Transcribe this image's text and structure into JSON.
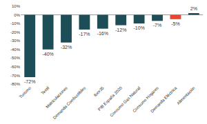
{
  "chart_data": {
    "type": "bar",
    "categories": [
      "Turismo",
      "Textil",
      "Matriculaciones",
      "Demanda Combustibles",
      "Ibex35",
      "PIB España 2020",
      "Consumo Gas Natural",
      "Consumo Hogares",
      "Demanda Eléctrica",
      "Alimentación"
    ],
    "values": [
      -72,
      -40,
      -32,
      -17,
      -16,
      -12,
      -10,
      -7,
      -5,
      2
    ],
    "value_labels": [
      "-72%",
      "-40%",
      "-32%",
      "-17%",
      "-16%",
      "-12%",
      "-10%",
      "-7%",
      "-5%",
      "2%"
    ],
    "colors": [
      "#1d4d57",
      "#1d4d57",
      "#1d4d57",
      "#1d4d57",
      "#1d4d57",
      "#1d4d57",
      "#1d4d57",
      "#1d4d57",
      "#e8462e",
      "#1d4d57"
    ],
    "data_labels": true,
    "ylim": [
      -80,
      10
    ],
    "yticks": [
      {
        "value": 10,
        "label": "10%"
      },
      {
        "value": 0,
        "label": "0%"
      },
      {
        "value": -10,
        "label": "-10%"
      },
      {
        "value": -20,
        "label": "-20%"
      },
      {
        "value": -30,
        "label": "-30%"
      },
      {
        "value": -40,
        "label": "-40%"
      },
      {
        "value": -50,
        "label": "-50%"
      },
      {
        "value": -60,
        "label": "-60%"
      },
      {
        "value": -70,
        "label": "-70%"
      },
      {
        "value": -80,
        "label": "-80%"
      }
    ],
    "grid": false
  }
}
